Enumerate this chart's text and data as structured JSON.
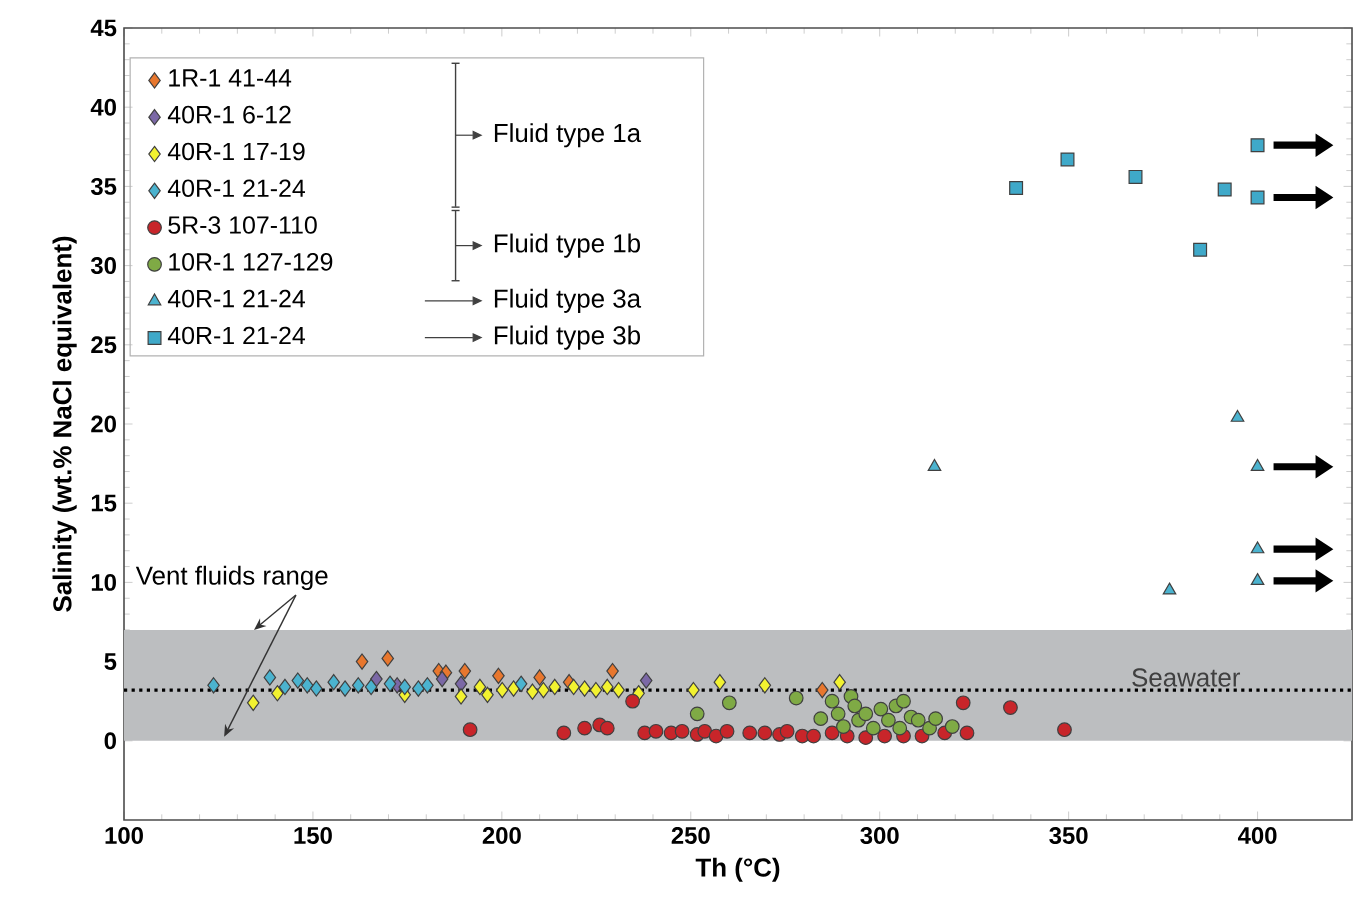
{
  "chart_data": {
    "type": "scatter",
    "xlabel": "Th (°C)",
    "ylabel": "Salinity (wt.% NaCl equivalent)",
    "xlim": [
      100,
      425
    ],
    "xticks": [
      100,
      150,
      200,
      250,
      300,
      350,
      400
    ],
    "ylim": [
      -5,
      45
    ],
    "yticks": [
      0,
      5,
      10,
      15,
      20,
      25,
      30,
      35,
      40,
      45
    ],
    "grid": false,
    "legend": "top left",
    "annotations": [
      "Fluid type 1a",
      "Fluid type 1b",
      "Fluid type 3a",
      "Fluid type 3b"
    ],
    "ref_lines": [
      {
        "axis": "y",
        "value": 3.2,
        "label": "Seawater",
        "line_style": "dotted",
        "color": "#000000"
      }
    ],
    "bands": [
      {
        "axis": "y",
        "from": 0,
        "to": 7,
        "label": "Vent fluids range",
        "color": "#bcbec0"
      }
    ],
    "series": [
      {
        "name": "1R-1 41-44",
        "color": "#e8772e",
        "marker": "diamond",
        "x": [
          163.0,
          169.8,
          183.3,
          185.2,
          190.2,
          199.1,
          210.0,
          217.8,
          229.3,
          284.8
        ],
        "values": [
          5.0,
          5.2,
          4.4,
          4.3,
          4.4,
          4.1,
          4.0,
          3.7,
          4.4,
          3.2
        ]
      },
      {
        "name": "40R-1 6-12",
        "color": "#7b68a6",
        "marker": "diamond",
        "x": [
          166.8,
          172.3,
          184.2,
          189.2,
          238.2
        ],
        "values": [
          3.9,
          3.5,
          3.9,
          3.6,
          3.8
        ]
      },
      {
        "name": "40R-1 17-19",
        "color": "#f2f230",
        "marker": "diamond",
        "x": [
          134.2,
          140.6,
          174.3,
          189.2,
          194.2,
          196.2,
          200.1,
          203.1,
          208.1,
          211.0,
          214.0,
          219.0,
          221.9,
          224.9,
          227.9,
          230.9,
          236.2,
          250.7,
          257.7,
          269.6,
          289.4
        ],
        "values": [
          2.4,
          3.0,
          2.9,
          2.8,
          3.4,
          2.9,
          3.2,
          3.3,
          3.1,
          3.2,
          3.4,
          3.4,
          3.3,
          3.2,
          3.4,
          3.2,
          3.0,
          3.2,
          3.7,
          3.5,
          3.7
        ]
      },
      {
        "name": "40R-1 21-24",
        "color": "#4bb3cf",
        "marker": "diamond",
        "x": [
          123.7,
          138.6,
          142.6,
          146.0,
          148.5,
          150.9,
          155.5,
          158.5,
          162.0,
          165.4,
          170.4,
          174.3,
          177.9,
          180.3,
          205.1
        ],
        "values": [
          3.5,
          4.0,
          3.4,
          3.8,
          3.5,
          3.3,
          3.7,
          3.3,
          3.5,
          3.4,
          3.6,
          3.4,
          3.3,
          3.5,
          3.6
        ]
      },
      {
        "name": "5R-3 107-110",
        "color": "#c8252a",
        "marker": "circle",
        "x": [
          191.6,
          216.4,
          221.9,
          225.9,
          227.9,
          234.6,
          237.8,
          240.8,
          244.8,
          247.7,
          251.7,
          253.7,
          256.7,
          259.6,
          265.6,
          269.6,
          273.5,
          275.5,
          279.5,
          282.5,
          287.4,
          291.4,
          296.3,
          301.3,
          306.3,
          311.2,
          317.2,
          322.1,
          323.1,
          334.6,
          348.9
        ],
        "values": [
          0.7,
          0.5,
          0.8,
          1.0,
          0.8,
          2.5,
          0.5,
          0.6,
          0.5,
          0.6,
          0.4,
          0.6,
          0.3,
          0.6,
          0.5,
          0.5,
          0.4,
          0.6,
          0.3,
          0.3,
          0.5,
          0.3,
          0.2,
          0.3,
          0.3,
          0.3,
          0.5,
          2.4,
          0.5,
          2.1,
          0.7
        ]
      },
      {
        "name": "10R-1 127-129",
        "color": "#7faa45",
        "marker": "circle",
        "x": [
          251.7,
          260.2,
          277.9,
          284.4,
          287.4,
          289.0,
          290.4,
          292.4,
          293.4,
          294.4,
          296.3,
          298.3,
          300.3,
          302.3,
          304.3,
          305.3,
          306.3,
          308.3,
          310.2,
          313.2,
          314.8,
          319.2
        ],
        "values": [
          1.7,
          2.4,
          2.7,
          1.4,
          2.5,
          1.7,
          0.9,
          2.8,
          2.2,
          1.3,
          1.7,
          0.8,
          2.0,
          1.3,
          2.2,
          0.8,
          2.5,
          1.5,
          1.3,
          0.8,
          1.4,
          0.9
        ]
      },
      {
        "name": "40R-1 21-24",
        "color": "#4bb3cf",
        "marker": "triangle",
        "x": [
          314.5,
          376.7,
          394.7,
          400,
          400,
          400
        ],
        "values": [
          17.3,
          9.5,
          20.4,
          17.3,
          12.1,
          10.1
        ]
      },
      {
        "name": "40R-1 21-24",
        "color": "#3fa9c9",
        "marker": "square",
        "x": [
          336.1,
          349.7,
          367.7,
          384.8,
          391.3,
          400,
          400
        ],
        "values": [
          34.9,
          36.7,
          35.6,
          31.0,
          34.8,
          37.6,
          34.3
        ]
      }
    ]
  }
}
